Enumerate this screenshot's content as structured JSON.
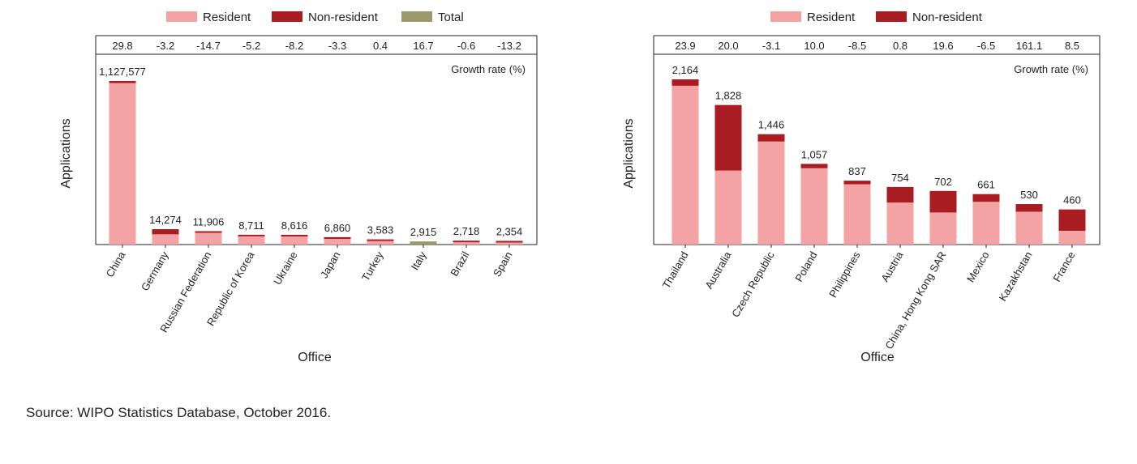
{
  "chart_data": [
    {
      "type": "bar",
      "stacked": true,
      "xlabel": "Office",
      "ylabel": "Applications",
      "growth_label": "Growth rate (%)",
      "legend": [
        {
          "name": "Resident",
          "color": "#f4a3a5"
        },
        {
          "name": "Non-resident",
          "color": "#a91c21"
        },
        {
          "name": "Total",
          "color": "#9a9a6a"
        }
      ],
      "categories": [
        "China",
        "Germany",
        "Russian Federation",
        "Republic of Korea",
        "Ukraine",
        "Japan",
        "Turkey",
        "Italy",
        "Brazil",
        "Spain"
      ],
      "totals": [
        "1,127,577",
        "14,274",
        "11,906",
        "8,711",
        "8,616",
        "6,860",
        "3,583",
        "2,915",
        "2,718",
        "2,354"
      ],
      "growth": [
        "29.8",
        "-3.2",
        "-14.7",
        "-5.2",
        "-8.2",
        "-3.3",
        "0.4",
        "16.7",
        "-0.6",
        "-13.2"
      ],
      "segments": [
        {
          "resident": 1113000,
          "nonresident": 14577,
          "total": 0
        },
        {
          "resident": 9500,
          "nonresident": 4774,
          "total": 0
        },
        {
          "resident": 10900,
          "nonresident": 1006,
          "total": 0
        },
        {
          "resident": 7600,
          "nonresident": 1111,
          "total": 0
        },
        {
          "resident": 7500,
          "nonresident": 1116,
          "total": 0
        },
        {
          "resident": 5200,
          "nonresident": 1660,
          "total": 0
        },
        {
          "resident": 3300,
          "nonresident": 283,
          "total": 0
        },
        {
          "resident": 0,
          "nonresident": 0,
          "total": 2915
        },
        {
          "resident": 2100,
          "nonresident": 618,
          "total": 0
        },
        {
          "resident": 1900,
          "nonresident": 454,
          "total": 0
        }
      ]
    },
    {
      "type": "bar",
      "stacked": true,
      "xlabel": "Office",
      "ylabel": "Applications",
      "growth_label": "Growth rate (%)",
      "legend": [
        {
          "name": "Resident",
          "color": "#f4a3a5"
        },
        {
          "name": "Non-resident",
          "color": "#a91c21"
        }
      ],
      "categories": [
        "Thailand",
        "Australia",
        "Czech Republic",
        "Poland",
        "Philippines",
        "Austria",
        "China, Hong Kong SAR",
        "Mexico",
        "Kazakhstan",
        "France"
      ],
      "totals": [
        "2,164",
        "1,828",
        "1,446",
        "1,057",
        "837",
        "754",
        "702",
        "661",
        "530",
        "460"
      ],
      "growth": [
        "23.9",
        "20.0",
        "-3.1",
        "10.0",
        "-8.5",
        "0.8",
        "19.6",
        "-6.5",
        "161.1",
        "8.5"
      ],
      "segments": [
        {
          "resident": 2080,
          "nonresident": 84
        },
        {
          "resident": 970,
          "nonresident": 858
        },
        {
          "resident": 1350,
          "nonresident": 96
        },
        {
          "resident": 1000,
          "nonresident": 57
        },
        {
          "resident": 790,
          "nonresident": 47
        },
        {
          "resident": 550,
          "nonresident": 204
        },
        {
          "resident": 420,
          "nonresident": 282
        },
        {
          "resident": 560,
          "nonresident": 101
        },
        {
          "resident": 430,
          "nonresident": 100
        },
        {
          "resident": 180,
          "nonresident": 280
        }
      ]
    }
  ],
  "source": "Source: WIPO Statistics Database, October 2016."
}
